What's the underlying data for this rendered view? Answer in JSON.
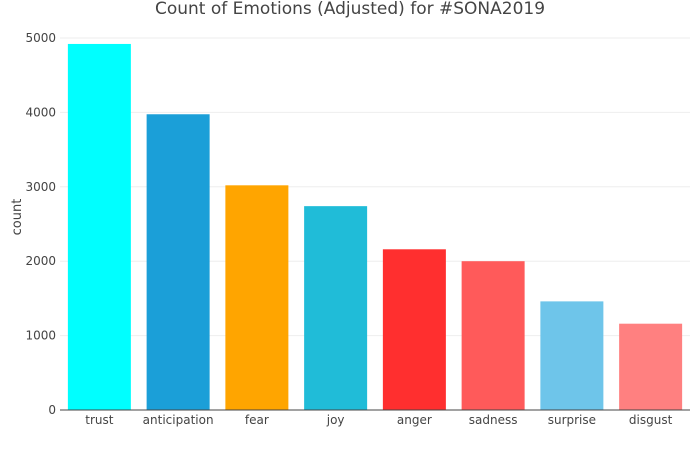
{
  "chart_data": {
    "type": "bar",
    "title": "Count of Emotions (Adjusted) for #SONA2019",
    "xlabel": "",
    "ylabel": "count",
    "categories": [
      "trust",
      "anticipation",
      "fear",
      "joy",
      "anger",
      "sadness",
      "surprise",
      "disgust"
    ],
    "values": [
      4920,
      3975,
      3020,
      2740,
      2160,
      2000,
      1460,
      1160
    ],
    "colors": [
      "#00ffff",
      "#1b9fd8",
      "#ffa500",
      "#20bcd8",
      "#ff2f2f",
      "#ff5a5a",
      "#6ec5ea",
      "#ff8080"
    ],
    "ylim": [
      0,
      5000
    ],
    "yticks": [
      0,
      1000,
      2000,
      3000,
      4000,
      5000
    ],
    "ytick_labels": [
      "0",
      "1000",
      "2000",
      "3000",
      "4000",
      "5000"
    ],
    "grid": true,
    "legend": "none"
  }
}
